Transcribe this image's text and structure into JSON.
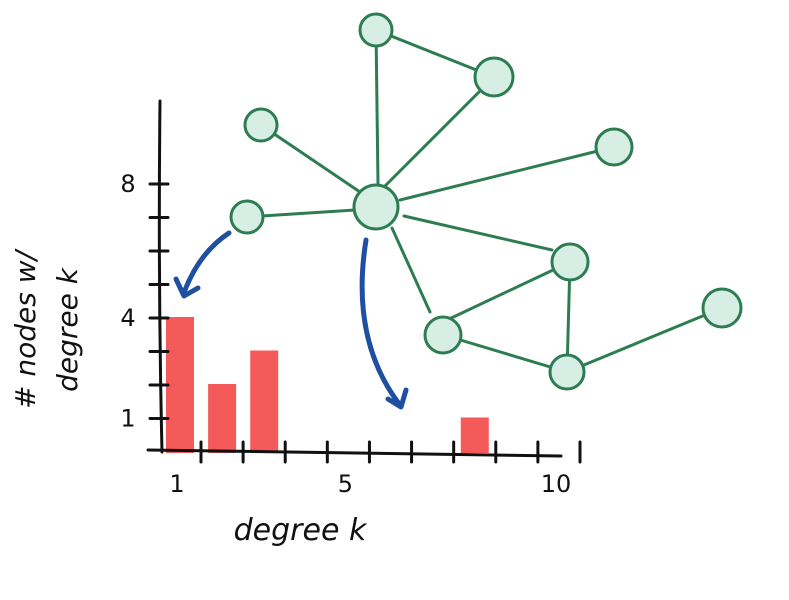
{
  "chart_data": {
    "type": "bar",
    "x": [
      1,
      2,
      3,
      8
    ],
    "values": [
      4,
      2,
      3,
      1
    ],
    "xlabel": "degree k",
    "ylabel_line1": "# nodes w/",
    "ylabel_line2": "degree k",
    "xlim": [
      1,
      10
    ],
    "ylim": [
      0,
      8
    ],
    "x_ticks": [
      1,
      5,
      10
    ],
    "y_ticks": [
      1,
      4,
      8
    ],
    "grid": false,
    "bar_color": "#f55a5a"
  },
  "graph": {
    "edge_color": "#2e7d52",
    "node_fill": "#d6eee3",
    "node_stroke": "#2e7d52",
    "arrow_color": "#1f4fa0"
  }
}
